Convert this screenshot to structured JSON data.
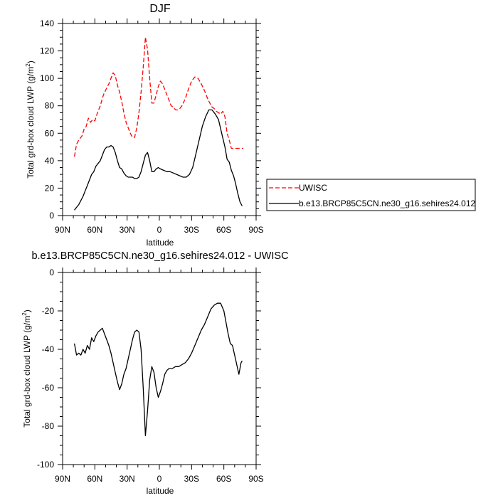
{
  "chart_data": [
    {
      "type": "line",
      "title": "DJF",
      "xlabel": "latitude",
      "ylabel": "Total grd-box cloud LWP (g/m",
      "ylabel_sup": "2",
      "ylabel_tail": ")",
      "xlim": [
        90,
        -90
      ],
      "ylim": [
        0,
        140
      ],
      "xticks": [
        90,
        60,
        30,
        0,
        -30,
        -60,
        -90
      ],
      "xticklabels": [
        "90N",
        "60N",
        "30N",
        "0",
        "30S",
        "60S",
        "90S"
      ],
      "yticks": [
        0,
        20,
        40,
        60,
        80,
        100,
        120,
        140
      ],
      "yticklabels": [
        "0",
        "20",
        "40",
        "60",
        "80",
        "100",
        "120",
        "140"
      ],
      "legend": {
        "placement": "right",
        "entries": [
          {
            "label": "UWISC",
            "color": "#ff0000",
            "dash": "dashed"
          },
          {
            "label": "b.e13.BRCP85C5CN.ne30_g16.sehires24.012",
            "color": "#000000",
            "dash": "solid"
          }
        ]
      },
      "series": [
        {
          "name": "UWISC",
          "color": "#ff0000",
          "dash": "dashed",
          "x": [
            79,
            77,
            75,
            72,
            70,
            68,
            66,
            64,
            62,
            60,
            58,
            55,
            52,
            49,
            47,
            45,
            43,
            41,
            39,
            37,
            35,
            33,
            31,
            29,
            27,
            25,
            23,
            21,
            19,
            17,
            15,
            13,
            11,
            9,
            7,
            5,
            3,
            1,
            -1,
            -3,
            -5,
            -7,
            -9,
            -11,
            -13,
            -15,
            -17,
            -19,
            -21,
            -24,
            -27,
            -30,
            -33,
            -36,
            -39,
            -42,
            -45,
            -47,
            -49,
            -51,
            -53,
            -55,
            -57,
            -59,
            -61,
            -63,
            -65,
            -67,
            -69,
            -71,
            -73,
            -75,
            -77,
            -78
          ],
          "y": [
            43,
            52,
            55,
            58,
            63,
            65,
            71,
            68,
            70,
            69,
            74,
            80,
            88,
            93,
            96,
            100,
            104,
            102,
            95,
            90,
            83,
            75,
            68,
            64,
            60,
            57,
            57,
            64,
            75,
            90,
            108,
            130,
            121,
            100,
            82,
            82,
            88,
            94,
            98,
            96,
            92,
            88,
            84,
            80,
            79,
            77,
            77,
            78,
            80,
            85,
            92,
            98,
            101,
            100,
            96,
            91,
            85,
            82,
            79,
            78,
            76,
            75,
            74,
            76,
            72,
            60,
            55,
            49,
            49,
            49,
            49,
            49,
            49,
            49
          ]
        },
        {
          "name": "b.e13.BRCP85C5CN.ne30_g16.sehires24.012",
          "color": "#000000",
          "dash": "solid",
          "x": [
            79,
            77,
            75,
            73,
            71,
            69,
            67,
            65,
            63,
            61,
            59,
            57,
            55,
            53,
            51,
            49,
            47,
            45,
            43,
            41,
            39,
            37,
            35,
            33,
            31,
            29,
            27,
            25,
            23,
            21,
            19,
            17,
            15,
            13,
            11,
            9,
            7,
            5,
            3,
            1,
            -1,
            -4,
            -7,
            -10,
            -13,
            -16,
            -19,
            -22,
            -25,
            -28,
            -31,
            -34,
            -37,
            -40,
            -43,
            -46,
            -49,
            -52,
            -55,
            -58,
            -61,
            -63,
            -65,
            -67,
            -69,
            -71,
            -73,
            -75,
            -77
          ],
          "y": [
            4,
            6,
            8,
            11,
            14,
            18,
            22,
            26,
            30,
            32,
            36,
            38,
            40,
            44,
            48,
            50,
            50,
            51,
            50,
            46,
            40,
            35,
            34,
            31,
            29,
            28,
            28,
            28,
            27,
            27,
            28,
            32,
            38,
            44,
            46,
            40,
            32,
            32,
            34,
            35,
            34,
            33,
            32,
            32,
            31,
            30,
            29,
            28,
            28,
            30,
            35,
            45,
            55,
            65,
            72,
            77,
            77,
            74,
            70,
            60,
            50,
            41,
            39,
            33,
            29,
            23,
            16,
            10,
            7
          ]
        }
      ]
    },
    {
      "type": "line",
      "title": "b.e13.BRCP85C5CN.ne30_g16.sehires24.012 - UWISC",
      "xlabel": "latitude",
      "ylabel": "Total grd-box cloud LWP (g/m",
      "ylabel_sup": "2",
      "ylabel_tail": ")",
      "xlim": [
        90,
        -90
      ],
      "ylim": [
        -100,
        0
      ],
      "xticks": [
        90,
        60,
        30,
        0,
        -30,
        -60,
        -90
      ],
      "xticklabels": [
        "90N",
        "60N",
        "30N",
        "0",
        "30S",
        "60S",
        "90S"
      ],
      "yticks": [
        -100,
        -80,
        -60,
        -40,
        -20,
        0
      ],
      "yticklabels": [
        "-100",
        "-80",
        "-60",
        "-40",
        "-20",
        "0"
      ],
      "series": [
        {
          "color": "#000000",
          "dash": "solid",
          "x": [
            79,
            77,
            75,
            73,
            71,
            69,
            67,
            65,
            63,
            61,
            59,
            57,
            55,
            53,
            51,
            49,
            47,
            45,
            43,
            41,
            39,
            37,
            35,
            33,
            31,
            29,
            27,
            25,
            23,
            21,
            19,
            17,
            15,
            13,
            11,
            9,
            7,
            5,
            3,
            1,
            -1,
            -3,
            -5,
            -7,
            -9,
            -12,
            -15,
            -18,
            -21,
            -24,
            -27,
            -30,
            -33,
            -36,
            -39,
            -42,
            -45,
            -48,
            -51,
            -54,
            -57,
            -60,
            -62,
            -64,
            -66,
            -68,
            -70,
            -72,
            -74,
            -76,
            -77
          ],
          "y": [
            -37,
            -43,
            -42,
            -43,
            -40,
            -42,
            -38,
            -40,
            -34,
            -36,
            -33,
            -31,
            -30,
            -29,
            -32,
            -35,
            -38,
            -42,
            -47,
            -52,
            -57,
            -61,
            -58,
            -53,
            -50,
            -45,
            -40,
            -35,
            -31,
            -30,
            -31,
            -40,
            -60,
            -85,
            -72,
            -56,
            -49,
            -52,
            -60,
            -65,
            -62,
            -58,
            -53,
            -51,
            -50,
            -50,
            -49,
            -49,
            -48,
            -47,
            -45,
            -42,
            -38,
            -34,
            -30,
            -27,
            -23,
            -19,
            -17,
            -16,
            -16,
            -20,
            -26,
            -32,
            -37,
            -38,
            -43,
            -48,
            -53,
            -47,
            -46
          ]
        }
      ]
    }
  ]
}
